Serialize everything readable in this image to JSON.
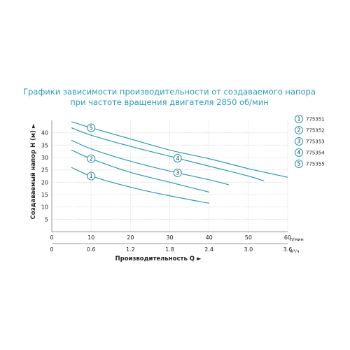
{
  "chart_data": {
    "type": "line",
    "title": [
      "Графики зависимости производительности от создаваемого напора",
      "при частоте вращения двигателя 2850 об/мин"
    ],
    "ylabel": "Создаваемый напор H (м) ►",
    "xlabel": "Производительность Q ►",
    "x_unit_top": "л/мин",
    "x_unit_bottom": "м³/ч",
    "xlim": [
      0,
      60
    ],
    "ylim": [
      0,
      45
    ],
    "y_ticks": [
      "5",
      "10",
      "15",
      "20",
      "25",
      "30",
      "35",
      "40"
    ],
    "x_ticks_lmin": [
      "0",
      "10",
      "20",
      "30",
      "40",
      "50",
      "60"
    ],
    "x_ticks_m3h": [
      "0",
      "0.6",
      "1.2",
      "1.8",
      "2.4",
      "3.0",
      "3.6"
    ],
    "grid": true,
    "legend_position": "right",
    "line_color": "#2a9bb7",
    "series": [
      {
        "name": "775351",
        "badge": "1",
        "badge_at": 10,
        "x": [
          5,
          10,
          20,
          30,
          40
        ],
        "y": [
          26,
          22.5,
          18,
          14.5,
          11.5
        ]
      },
      {
        "name": "775352",
        "badge": "2",
        "badge_at": 10,
        "x": [
          5,
          10,
          20,
          30,
          40
        ],
        "y": [
          33,
          29.5,
          24,
          20,
          16
        ]
      },
      {
        "name": "775353",
        "badge": "3",
        "badge_at": 32,
        "x": [
          5,
          10,
          20,
          30,
          40,
          45
        ],
        "y": [
          37,
          33.5,
          28.5,
          24.5,
          21,
          19
        ]
      },
      {
        "name": "775354",
        "badge": "4",
        "badge_at": 32,
        "x": [
          5,
          10,
          20,
          30,
          40,
          50,
          54
        ],
        "y": [
          42,
          39,
          34.5,
          30.5,
          26.5,
          22.5,
          20.5
        ]
      },
      {
        "name": "775355",
        "badge": "5",
        "badge_at": 10,
        "x": [
          5,
          10,
          20,
          30,
          40,
          50,
          60
        ],
        "y": [
          44.5,
          42,
          37.5,
          33,
          29.5,
          25.5,
          22
        ]
      }
    ]
  }
}
